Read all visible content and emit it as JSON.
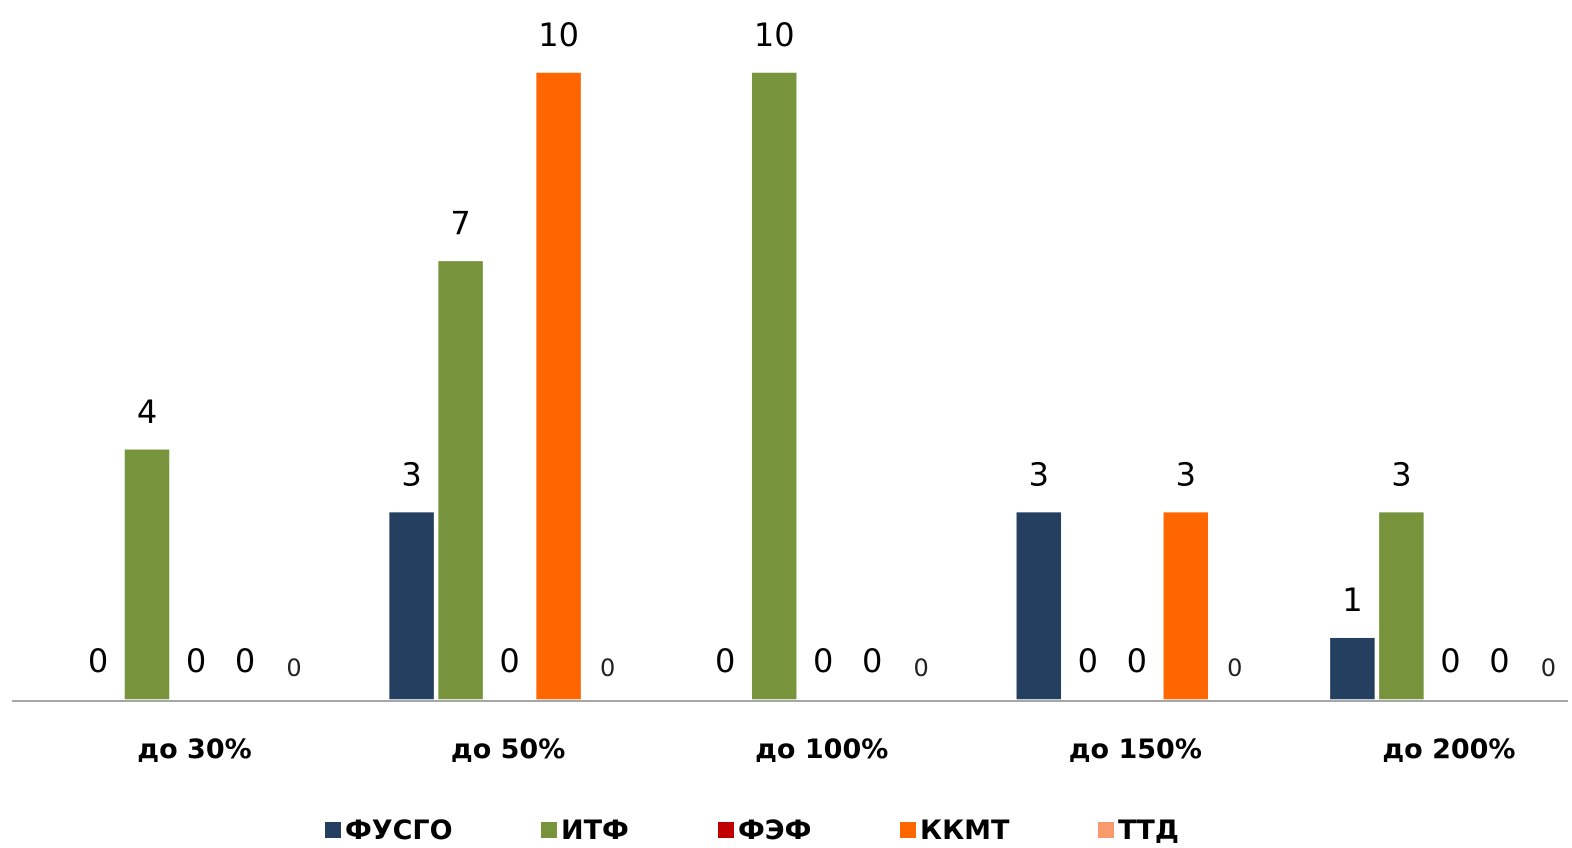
{
  "chart_data": {
    "type": "bar",
    "title": "",
    "xlabel": "",
    "ylabel": "",
    "ylim": [
      0,
      10
    ],
    "grid": false,
    "legend_position": "bottom",
    "categories": [
      "до 30%",
      "до 50%",
      "до 100%",
      "до 150%",
      "до 200%"
    ],
    "series": [
      {
        "name": "ФУСГО",
        "color": "#243F60",
        "values": [
          0,
          3,
          0,
          3,
          1
        ]
      },
      {
        "name": "ИТФ",
        "color": "#77933C",
        "values": [
          4,
          7,
          10,
          0,
          3
        ]
      },
      {
        "name": "ФЭФ",
        "color": "#C00000",
        "values": [
          0,
          0,
          0,
          0,
          0
        ]
      },
      {
        "name": "ККМТ",
        "color": "#FF6600",
        "values": [
          0,
          10,
          0,
          3,
          0
        ]
      },
      {
        "name": "ТТД",
        "color": "#F79A6E",
        "values": [
          0,
          0,
          0,
          0,
          0
        ]
      }
    ]
  }
}
